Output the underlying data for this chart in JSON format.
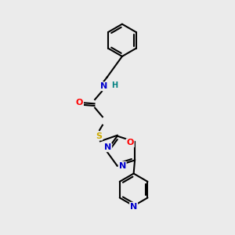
{
  "bg_color": "#ebebeb",
  "bond_color": "#000000",
  "bond_width": 1.5,
  "atom_colors": {
    "N": "#0000cc",
    "O": "#ff0000",
    "S": "#ccaa00",
    "H": "#008080",
    "C": "#000000"
  },
  "font_size": 8,
  "fig_width": 3.0,
  "fig_height": 3.0,
  "dpi": 100
}
